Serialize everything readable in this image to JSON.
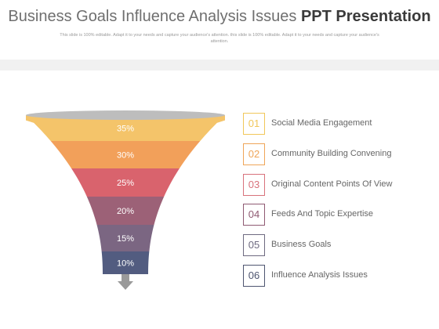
{
  "header": {
    "title_regular": "Business Goals Influence Analysis Issues",
    "title_bold": "PPT Presentation",
    "subtitle": "This slide is 100% editable. Adapt it to your needs and capture your audience's attention. this slide is 100% editable. Adapt it to your needs and capture your audience's attention."
  },
  "funnel": {
    "levels": [
      {
        "label": "35%",
        "color": "#f4c46a"
      },
      {
        "label": "30%",
        "color": "#f2a05a"
      },
      {
        "label": "25%",
        "color": "#d9636d"
      },
      {
        "label": "20%",
        "color": "#9c6177"
      },
      {
        "label": "15%",
        "color": "#7b6682"
      },
      {
        "label": "10%",
        "color": "#525c80"
      }
    ],
    "rim_color": "#bdbdbd",
    "arrow_color": "#9a9a9a"
  },
  "list": {
    "items": [
      {
        "num": "01",
        "label": "Social Media Engagement",
        "color": "#f1c75a"
      },
      {
        "num": "02",
        "label": "Community  Building Convening",
        "color": "#efa558"
      },
      {
        "num": "03",
        "label": "Original Content Points Of View",
        "color": "#d8727c"
      },
      {
        "num": "04",
        "label": "Feeds And Topic Expertise",
        "color": "#8f5a72"
      },
      {
        "num": "05",
        "label": "Business Goals",
        "color": "#6e6a80"
      },
      {
        "num": "06",
        "label": "Influence Analysis Issues",
        "color": "#4e5570"
      }
    ]
  }
}
